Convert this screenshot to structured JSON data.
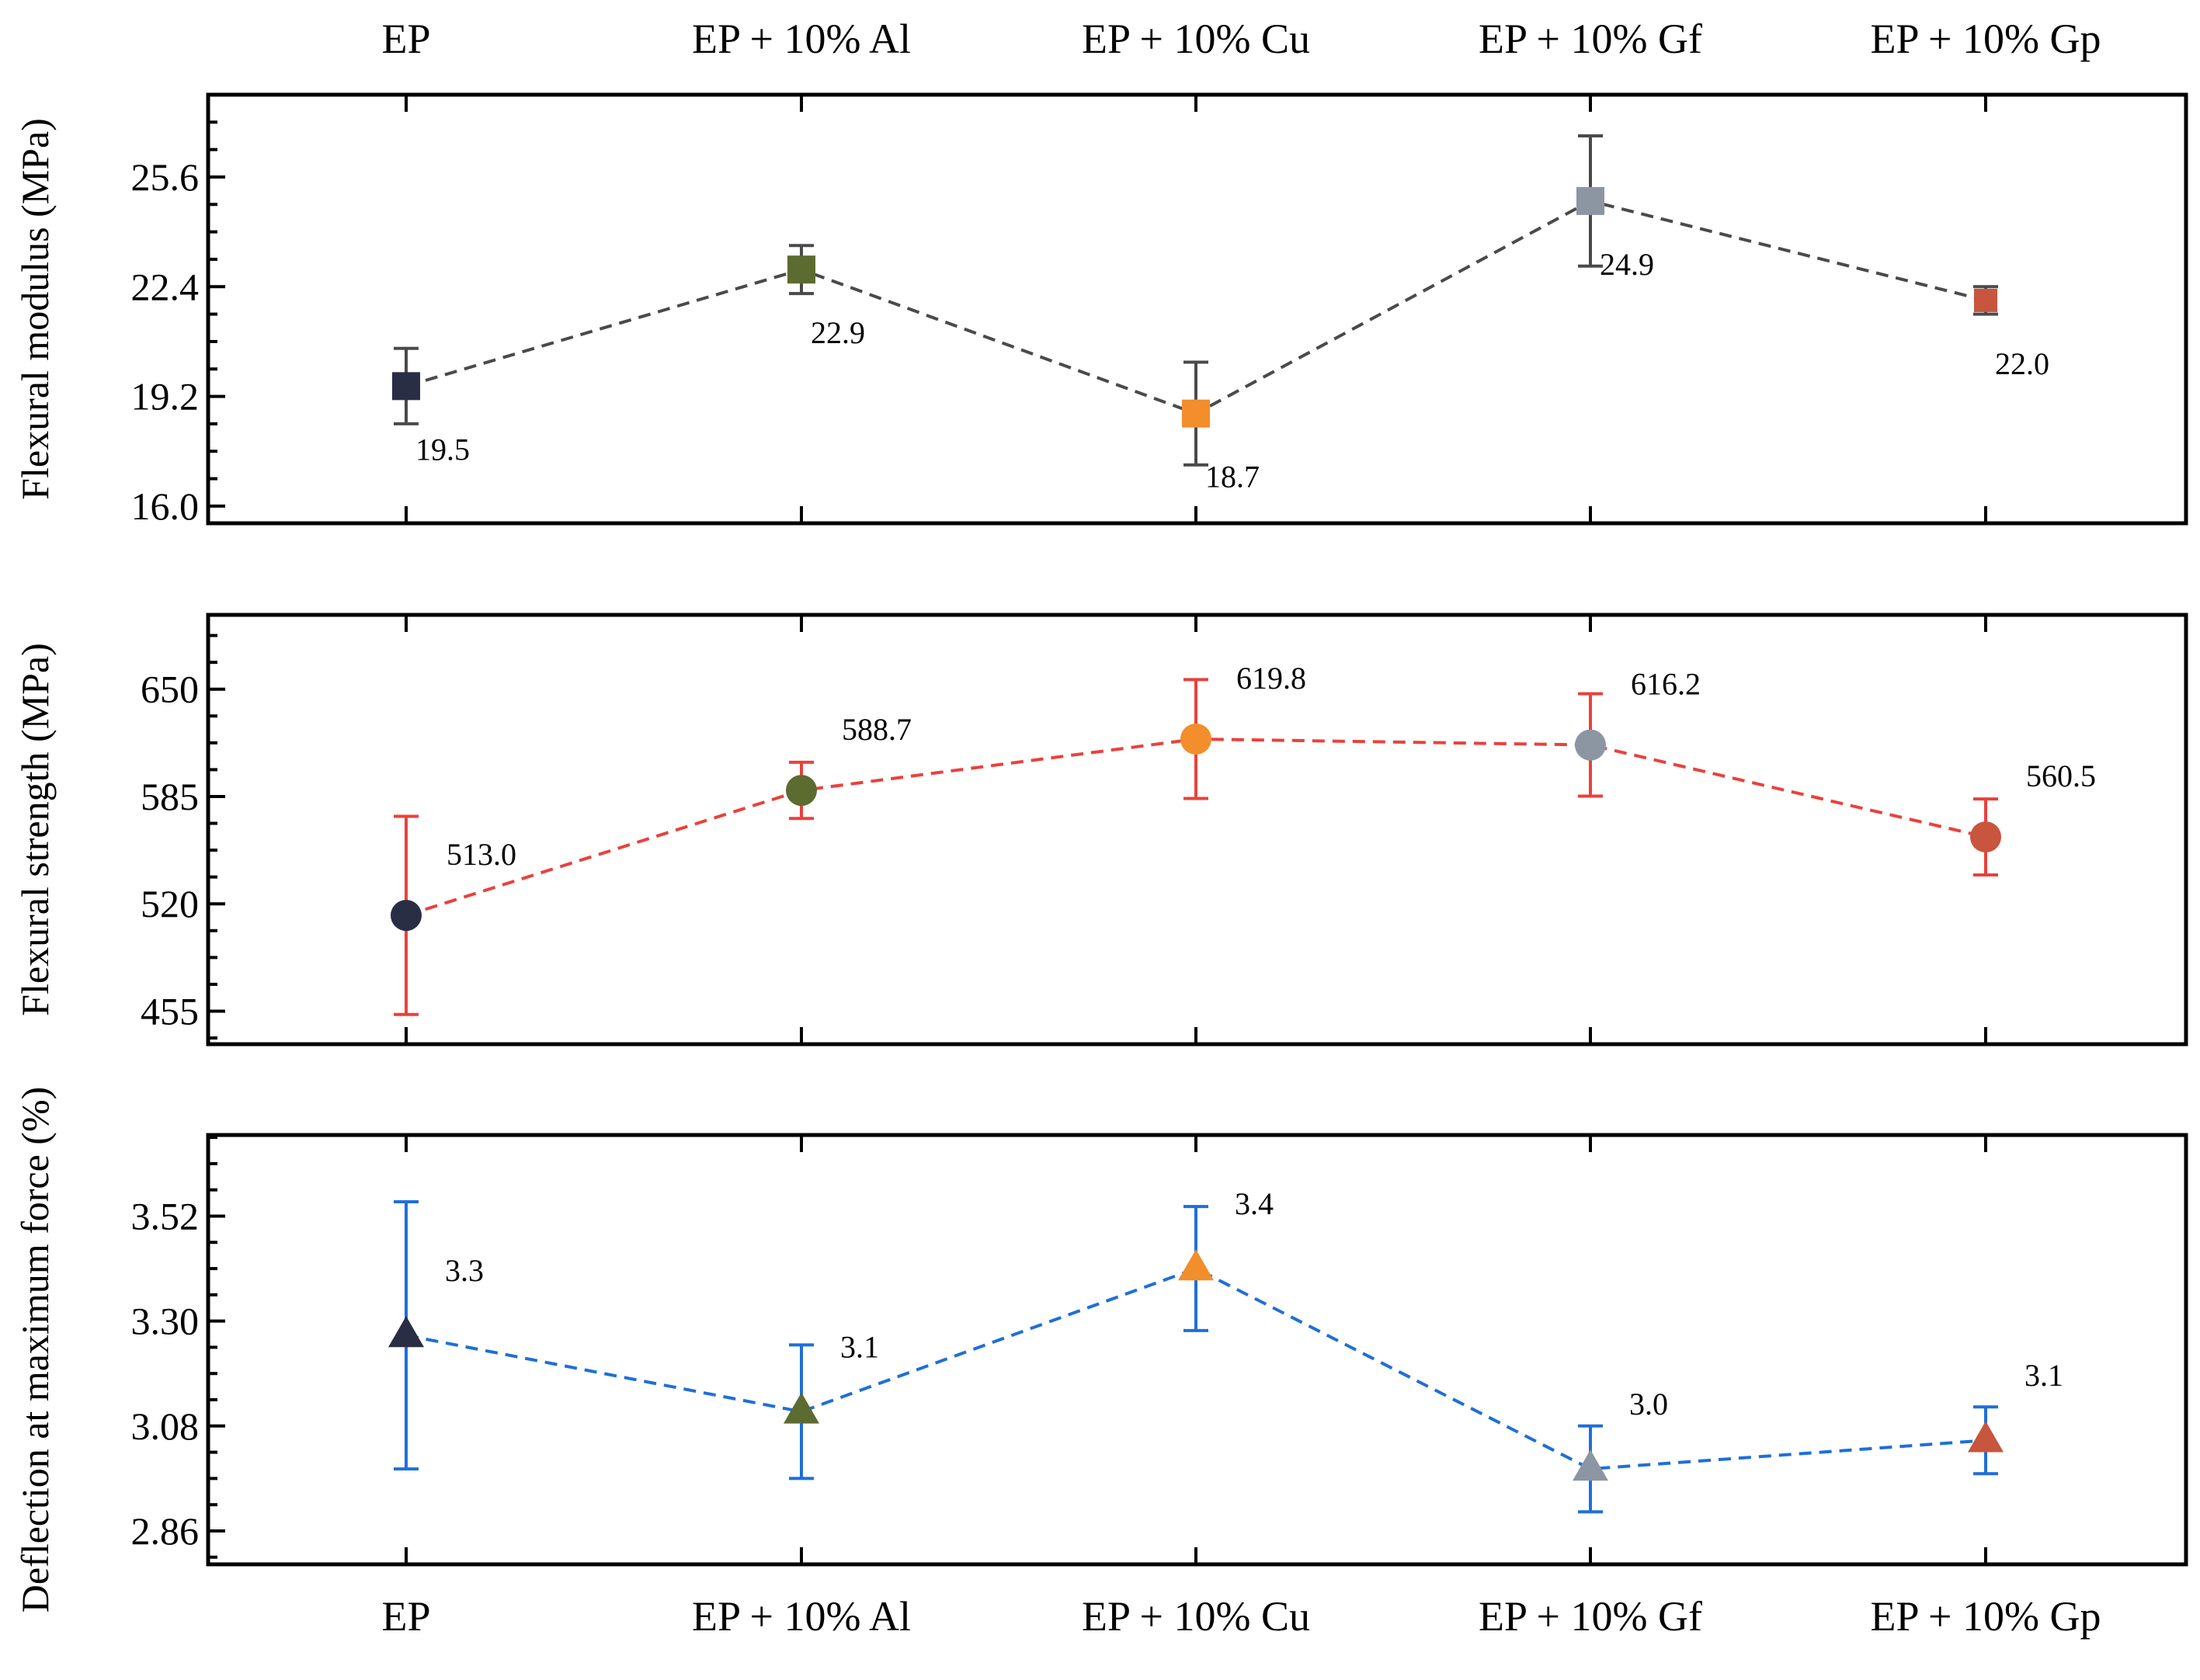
{
  "chart_data": {
    "type": "scatter",
    "categories": [
      "EP",
      "EP + 10% Al",
      "EP + 10% Cu",
      "EP + 10% Gf",
      "EP + 10% Gp"
    ],
    "point_colors": [
      "#2a2e45",
      "#5c6b2f",
      "#f28e2b",
      "#8c96a3",
      "#c8553d"
    ],
    "panels": [
      {
        "ylabel": "Flexural modulus (MPa)",
        "marker": "square",
        "line_color": "#4a4a4a",
        "errorbar_color": "#4a4a4a",
        "ylim": [
          15.5,
          28.0
        ],
        "yticks": [
          16.0,
          19.2,
          22.4,
          25.6
        ],
        "ytick_labels": [
          "16.0",
          "19.2",
          "22.4",
          "25.6"
        ],
        "values": [
          19.5,
          22.9,
          18.7,
          24.9,
          22.0
        ],
        "errors": [
          1.1,
          0.7,
          1.5,
          1.9,
          0.4
        ],
        "value_labels": [
          "19.5",
          "22.9",
          "18.7",
          "24.9",
          "22.0"
        ]
      },
      {
        "ylabel": "Flexural strength (MPa)",
        "marker": "circle",
        "line_color": "#e8423b",
        "errorbar_color": "#e8423b",
        "ylim": [
          435,
          695
        ],
        "yticks": [
          455,
          520,
          585,
          650
        ],
        "ytick_labels": [
          "455",
          "520",
          "585",
          "650"
        ],
        "values": [
          513.0,
          588.7,
          619.8,
          616.2,
          560.5
        ],
        "errors": [
          60,
          17,
          36,
          31,
          23
        ],
        "value_labels": [
          "513.0",
          "588.7",
          "619.8",
          "616.2",
          "560.5"
        ]
      },
      {
        "ylabel": "Deflection at maximum force (%)",
        "marker": "triangle",
        "line_color": "#1f6fd6",
        "errorbar_color": "#1f6fd6",
        "ylim": [
          2.79,
          3.69
        ],
        "yticks": [
          2.86,
          3.08,
          3.3,
          3.52
        ],
        "ytick_labels": [
          "2.86",
          "3.08",
          "3.30",
          "3.52"
        ],
        "values": [
          3.27,
          3.11,
          3.41,
          2.99,
          3.05
        ],
        "errors": [
          0.28,
          0.14,
          0.13,
          0.09,
          0.07
        ],
        "value_labels": [
          "3.3",
          "3.1",
          "3.4",
          "3.0",
          "3.1"
        ]
      }
    ],
    "grid": false,
    "legend": "none"
  }
}
